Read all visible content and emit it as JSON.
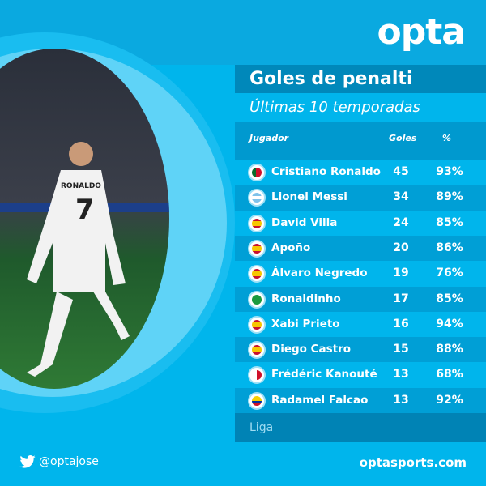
{
  "brand": {
    "logo": "opta",
    "twitter_handle": "@optajose",
    "website": "optasports.com",
    "accent": "#00b5ec"
  },
  "title": "Goles de penalti",
  "subtitle": "Últimas 10 temporadas",
  "columns": [
    "Jugador",
    "Goles",
    "%"
  ],
  "rows": [
    {
      "flag": "portugal",
      "name": "Cristiano Ronaldo",
      "goals": "45",
      "pct": "93%"
    },
    {
      "flag": "argentina",
      "name": "Lionel Messi",
      "goals": "34",
      "pct": "89%"
    },
    {
      "flag": "spain",
      "name": "David Villa",
      "goals": "24",
      "pct": "85%"
    },
    {
      "flag": "spain",
      "name": "Apoño",
      "goals": "20",
      "pct": "86%"
    },
    {
      "flag": "spain",
      "name": "Álvaro Negredo",
      "goals": "19",
      "pct": "76%"
    },
    {
      "flag": "brazil",
      "name": "Ronaldinho",
      "goals": "17",
      "pct": "85%"
    },
    {
      "flag": "spain",
      "name": "Xabi Prieto",
      "goals": "16",
      "pct": "94%"
    },
    {
      "flag": "spain",
      "name": "Diego Castro",
      "goals": "15",
      "pct": "88%"
    },
    {
      "flag": "sevilla",
      "name": "Frédéric Kanouté",
      "goals": "13",
      "pct": "68%"
    },
    {
      "flag": "colombia",
      "name": "Radamel Falcao",
      "goals": "13",
      "pct": "92%"
    }
  ],
  "footer": "Liga",
  "photo_jersey": {
    "name": "RONALDO",
    "number": "7"
  }
}
